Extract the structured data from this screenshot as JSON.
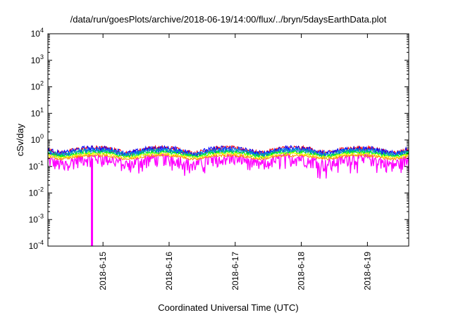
{
  "chart_data": {
    "type": "line",
    "title": "/data/run/goesPlots/archive/2018-06-19/14:00/flux/../bryn/5daysEarthData.plot",
    "xlabel": "Coordinated Universal Time (UTC)",
    "ylabel": "cSv/day",
    "yscale": "log",
    "ylim": [
      0.0001,
      10000
    ],
    "xlim": [
      "2018-06-14 04:00",
      "2018-06-19 15:00"
    ],
    "x_ticks": [
      "2018-6-15",
      "2018-6-16",
      "2018-6-17",
      "2018-6-18",
      "2018-6-19"
    ],
    "y_ticks": [
      {
        "base": "10",
        "exp": "-4"
      },
      {
        "base": "10",
        "exp": "-3"
      },
      {
        "base": "10",
        "exp": "-2"
      },
      {
        "base": "10",
        "exp": "-1"
      },
      {
        "base": "10",
        "exp": "0"
      },
      {
        "base": "10",
        "exp": "1"
      },
      {
        "base": "10",
        "exp": "2"
      },
      {
        "base": "10",
        "exp": "3"
      },
      {
        "base": "10",
        "exp": "4"
      }
    ],
    "grid": false,
    "legend": "none",
    "series": [
      {
        "color": "#ff00ff",
        "base": 0.22,
        "noise": 0.55,
        "dip": 0.45
      },
      {
        "color": "#ff0000",
        "base": 0.5,
        "noise": 0.22,
        "dip": 0.35
      },
      {
        "color": "#0000ff",
        "base": 0.48,
        "noise": 0.28,
        "dip": 0.35
      },
      {
        "color": "#0066ff",
        "base": 0.42,
        "noise": 0.22,
        "dip": 0.33
      },
      {
        "color": "#00aaaa",
        "base": 0.4,
        "noise": 0.18,
        "dip": 0.32
      },
      {
        "color": "#00ff00",
        "base": 0.34,
        "noise": 0.14,
        "dip": 0.3
      },
      {
        "color": "#ffff00",
        "base": 0.3,
        "noise": 0.12,
        "dip": 0.28
      },
      {
        "color": "#ff8800",
        "base": 0.26,
        "noise": 0.1,
        "dip": 0.26
      }
    ],
    "daily_dips": [
      "2018-06-14 09:00",
      "2018-06-15 09:00",
      "2018-06-16 09:00",
      "2018-06-17 09:00",
      "2018-06-18 09:00",
      "2018-06-19 09:00"
    ],
    "spike": {
      "series_color": "#ff00ff",
      "x": "2018-06-14 20:00",
      "y": 0.0001
    }
  }
}
